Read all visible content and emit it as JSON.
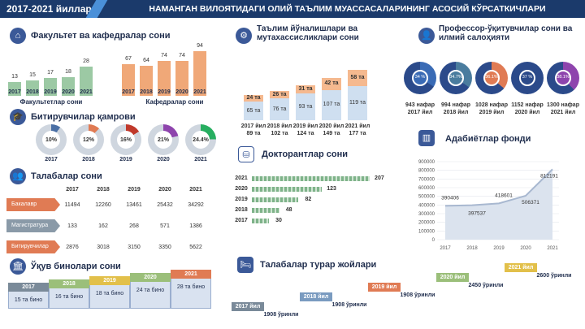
{
  "header": {
    "years": "2017-2021 йиллар",
    "title": "НАМАНГАН ВИЛОЯТИДАГИ ОЛИЙ ТАЪЛИМ МУАССАСАЛАРИНИНГ АСОСИЙ КЎРСАТКИЧЛАРИ"
  },
  "faculty": {
    "title": "Факультет ва кафедралар сони",
    "years": [
      "2017",
      "2018",
      "2019",
      "2020",
      "2021"
    ],
    "fac": [
      13,
      15,
      17,
      18,
      28
    ],
    "kaf": [
      67,
      64,
      74,
      74,
      94
    ],
    "fac_label": "Факультетлар сони",
    "kaf_label": "Кафедралар сони"
  },
  "directions": {
    "title": "Таълим йўналишлари ва мутахассисликлари сони",
    "top": [
      "24 та",
      "26 та",
      "31 та",
      "42 та",
      "58 та"
    ],
    "bottom": [
      "65 та",
      "76 та",
      "93 та",
      "107 та",
      "119 та"
    ],
    "cap1": [
      "2017 йил",
      "2018 йил",
      "2019 йил",
      "2020 йил",
      "2021 йил"
    ],
    "cap2": [
      "89 та",
      "102 та",
      "124 та",
      "149 та",
      "177 та"
    ]
  },
  "teachers": {
    "title": "Профессор-ўқитувчилар сони ва илмий салоҳияти",
    "pcts": [
      "34 %",
      "34.7%",
      "36.1%",
      "37 %",
      "38.1%"
    ],
    "cap1": [
      "943 нафар",
      "994 нафар",
      "1028 нафар",
      "1152 нафар",
      "1300 нафар"
    ],
    "cap2": [
      "2017 йил",
      "2018 йил",
      "2019 йил",
      "2020 йил",
      "2021 йил"
    ]
  },
  "grads": {
    "title": "Битирувчилар қамрови",
    "pcts": [
      "10%",
      "12%",
      "16%",
      "21%",
      "24.4%"
    ],
    "years": [
      "2017",
      "2018",
      "2019",
      "2020",
      "2021"
    ]
  },
  "students": {
    "title": "Талабалар сони",
    "years": [
      "2017",
      "2018",
      "2019",
      "2020",
      "2021"
    ],
    "rows": [
      {
        "label": "Бакалавр",
        "vals": [
          "11494",
          "12260",
          "13461",
          "25432",
          "34292"
        ]
      },
      {
        "label": "Магистратура",
        "vals": [
          "133",
          "162",
          "268",
          "571",
          "1386"
        ]
      },
      {
        "label": "Битирувчилар",
        "vals": [
          "2876",
          "3018",
          "3150",
          "3350",
          "5622"
        ]
      }
    ]
  },
  "doctoral": {
    "title": "Докторантлар сони",
    "years": [
      "2021",
      "2020",
      "2019",
      "2018",
      "2017"
    ],
    "vals": [
      207,
      123,
      82,
      48,
      30
    ]
  },
  "library": {
    "title": "Адабиётлар фонди",
    "yticks": [
      "900000",
      "800000",
      "700000",
      "600000",
      "500000",
      "400000",
      "300000",
      "200000",
      "100000",
      "0"
    ],
    "xticks": [
      "2017",
      "2018",
      "2019",
      "2020",
      "2021"
    ],
    "labels": [
      "390406",
      "397537",
      "418601",
      "506371",
      "812191"
    ]
  },
  "buildings": {
    "title": "Ўқув бинолари сони",
    "years": [
      "2017",
      "2018",
      "2019",
      "2020",
      "2021"
    ],
    "vals": [
      "15 та бино",
      "16 та бино",
      "18 та бино",
      "24 та бино",
      "28 та бино"
    ]
  },
  "dorms": {
    "title": "Талабалар турар жойлари",
    "years": [
      "2017 йил",
      "2018 йил",
      "2019 йил",
      "2020 йил",
      "2021 йил"
    ],
    "vals": [
      "1908 ўринли",
      "1908 ўринли",
      "1908 ўринли",
      "2450 ўринли",
      "2600 ўринли"
    ]
  },
  "chart_data": {
    "type": "line",
    "x": [
      2017,
      2018,
      2019,
      2020,
      2021
    ],
    "values": [
      390406,
      397537,
      418601,
      506371,
      812191
    ],
    "ylim": [
      0,
      900000
    ]
  },
  "colors": {
    "navy": "#1b3a6b",
    "green": "#7fb38a",
    "orange": "#e8a070",
    "blue": "#4a90d9"
  }
}
